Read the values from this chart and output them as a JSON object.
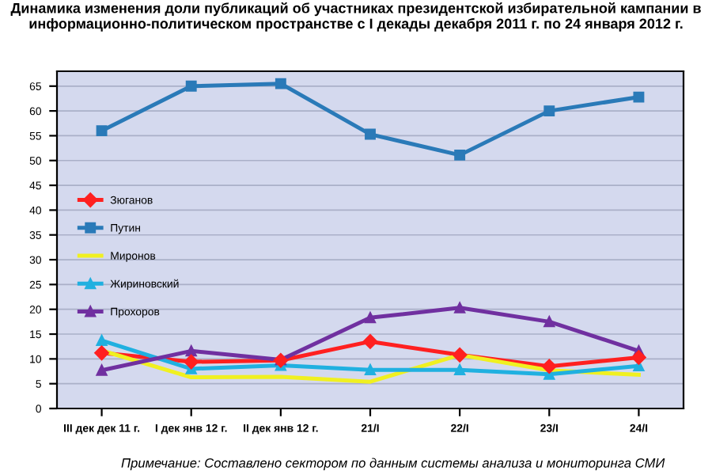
{
  "chart_data": {
    "type": "line",
    "title": "Динамика изменения доли публикаций об участниках президентской избирательной кампании в информационно-политическом пространстве с I декады декабря 2011 г. по 24 января 2012 г.",
    "categories": [
      "III дек дек 11 г.",
      "I дек янв 12 г.",
      "II дек янв 12 г.",
      "21/I",
      "22/I",
      "23/I",
      "24/I"
    ],
    "series": [
      {
        "name": "Зюганов",
        "color": "#ff2020",
        "marker": "diamond",
        "values": [
          11.2,
          9.4,
          9.7,
          13.5,
          10.8,
          8.5,
          10.3
        ]
      },
      {
        "name": "Путин",
        "color": "#2a7ab8",
        "marker": "square",
        "values": [
          56,
          65,
          65.5,
          55.3,
          51.1,
          60,
          62.8
        ]
      },
      {
        "name": "Миронов",
        "color": "#f0f020",
        "marker": "none",
        "values": [
          11.7,
          6.3,
          6.4,
          5.4,
          10.8,
          7.7,
          6.8
        ]
      },
      {
        "name": "Жириновский",
        "color": "#20b0e0",
        "marker": "triangle",
        "values": [
          13.7,
          8.0,
          8.7,
          7.8,
          7.8,
          6.9,
          8.6
        ]
      },
      {
        "name": "Прохоров",
        "color": "#7030a0",
        "marker": "triangle",
        "values": [
          7.7,
          11.6,
          9.8,
          18.3,
          20.3,
          17.5,
          11.6
        ]
      }
    ],
    "ylim": [
      0,
      68
    ],
    "yticks": [
      0,
      5,
      10,
      15,
      20,
      25,
      30,
      35,
      40,
      45,
      50,
      55,
      60,
      65
    ],
    "grid": "y",
    "legend": "center left",
    "annotations": [
      "Примечание: Составлено сектором по данным системы анализа и мониторинга СМИ"
    ]
  }
}
